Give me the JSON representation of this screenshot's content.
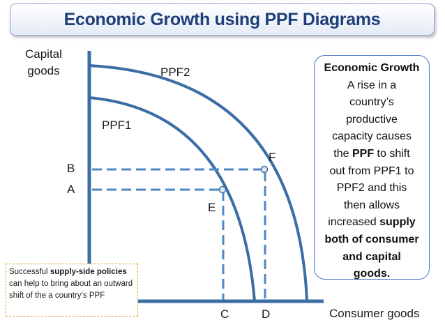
{
  "title": "Economic Growth using PPF Diagrams",
  "axes": {
    "y_label_line1": "Capital",
    "y_label_line2": "goods",
    "x_label": "Consumer goods"
  },
  "curves": {
    "ppf1": "PPF1",
    "ppf2": "PPF2"
  },
  "points": {
    "e": "E",
    "f": "F",
    "a": "A",
    "b": "B",
    "c": "C",
    "d": "D"
  },
  "info_box": {
    "heading": "Economic Growth",
    "line1": "A rise in a",
    "line2": "country’s",
    "line3": "productive",
    "line4": "capacity causes",
    "line5_pre": "the ",
    "line5_bold": "PPF",
    "line5_post": " to shift",
    "line6": "out from PPF1 to",
    "line7": "PPF2 and this",
    "line8": "then allows",
    "line9_pre": "increased ",
    "line9_bold": "supply",
    "line10_bold": "both of consumer",
    "line11_bold": "and capital",
    "line12_bold": "goods."
  },
  "note_box": {
    "pre": "Successful ",
    "bold": "supply-side policies",
    "post": " can help to bring about an outward shift of the a country’s PPF"
  },
  "colors": {
    "curve": "#3a6ea5",
    "dashed": "#4f86c6",
    "title_text": "#1f3f7a",
    "point_fill": "#dce8f6"
  }
}
